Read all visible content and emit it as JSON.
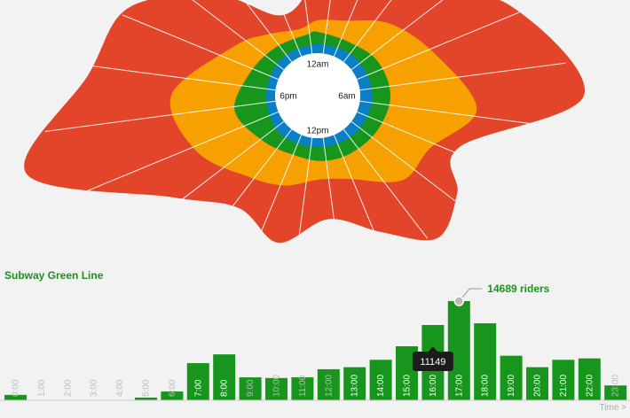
{
  "chart_data": [
    {
      "type": "radial-area",
      "hour_labels": [
        "12am",
        "6am",
        "12pm",
        "6pm"
      ],
      "colors": {
        "blue": "#0a7fc6",
        "green": "#18951c",
        "orange": "#f7a100",
        "red": "#e2452a",
        "hole": "#ffffff"
      }
    },
    {
      "type": "bar",
      "title": "Subway Green Line",
      "categories": [
        "0:00",
        "1:00",
        "2:00",
        "3:00",
        "4:00",
        "5:00",
        "6:00",
        "7:00",
        "8:00",
        "9:00",
        "10:00",
        "11:00",
        "12:00",
        "13:00",
        "14:00",
        "15:00",
        "16:00",
        "17:00",
        "18:00",
        "19:00",
        "20:00",
        "21:00",
        "22:00",
        "23:00"
      ],
      "values": [
        800,
        0,
        0,
        0,
        0,
        400,
        1300,
        5500,
        6800,
        3400,
        3300,
        3400,
        4600,
        4900,
        6000,
        8000,
        11149,
        14689,
        11400,
        6600,
        4900,
        6000,
        6200,
        2200
      ],
      "empty_label_color": "#bbbbbb",
      "bar_color": "#18951c",
      "axis_label": "Time >",
      "tooltip": {
        "index": 16,
        "text": "11149"
      },
      "annotation": {
        "index": 17,
        "text": "14689 riders"
      }
    }
  ]
}
